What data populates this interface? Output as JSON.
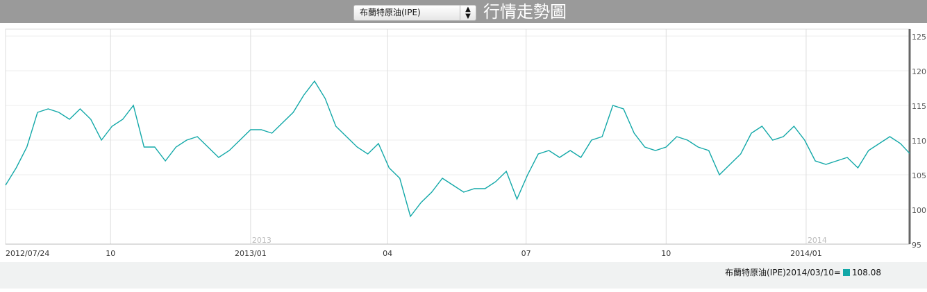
{
  "header": {
    "selector_value": "布蘭特原油(IPE)",
    "title": "行情走勢圖"
  },
  "legend": {
    "label": "布蘭特原油(IPE)2014/03/10=",
    "value": "108.08",
    "color": "#12a8a8"
  },
  "chart_data": {
    "type": "line",
    "color": "#12a8a8",
    "ylim": [
      95,
      125
    ],
    "yticks": [
      "95",
      "100",
      "105",
      "110",
      "115",
      "120",
      "125"
    ],
    "y_axis_position": "right",
    "xlim": [
      "2012-07-24",
      "2014-03-10"
    ],
    "xticks": [
      {
        "date": "2012-07-24",
        "label": "2012/07/24"
      },
      {
        "date": "2012-10-01",
        "label": "10"
      },
      {
        "date": "2013-01-01",
        "label": "2013/01"
      },
      {
        "date": "2013-04-01",
        "label": "04"
      },
      {
        "date": "2013-07-01",
        "label": "07"
      },
      {
        "date": "2013-10-01",
        "label": "10"
      },
      {
        "date": "2014-01-01",
        "label": "2014/01"
      }
    ],
    "year_marks": [
      {
        "date": "2013-01-01",
        "label": "2013"
      },
      {
        "date": "2014-01-01",
        "label": "2014"
      }
    ],
    "grid": true,
    "start": "2012-07-24",
    "weekly_values": [
      103.5,
      106,
      109,
      114,
      114.5,
      114,
      113,
      114.5,
      113,
      110,
      112,
      113,
      115,
      109,
      109,
      107,
      109,
      110,
      110.5,
      109,
      107.5,
      108.5,
      110,
      111.5,
      111.5,
      111,
      112.5,
      114,
      116.5,
      118.5,
      116,
      112,
      110.5,
      109,
      108,
      109.5,
      106,
      104.5,
      99,
      101,
      102.5,
      104.5,
      103.5,
      102.5,
      103,
      103,
      104,
      105.5,
      101.5,
      105,
      108,
      108.5,
      107.5,
      108.5,
      107.5,
      110,
      110.5,
      115,
      114.5,
      111,
      109,
      108.5,
      109,
      110.5,
      110,
      109,
      108.5,
      105,
      106.5,
      108,
      111,
      112,
      110,
      110.5,
      112,
      110,
      107,
      106.5,
      107,
      107.5,
      106,
      108.5,
      109.5,
      110.5,
      109.5
    ],
    "last": {
      "date": "2014-03-10",
      "value": 108.08
    }
  }
}
